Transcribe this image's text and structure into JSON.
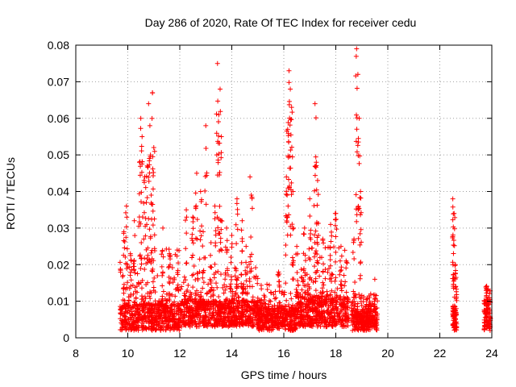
{
  "chart_data": {
    "type": "scatter",
    "title": "Day 286 of 2020, Rate Of TEC Index for receiver cedu",
    "xlabel": "GPS time / hours",
    "ylabel": "ROTI / TECUs",
    "xlim": [
      8,
      24
    ],
    "ylim": [
      0,
      0.08
    ],
    "x_ticks": [
      8,
      10,
      12,
      14,
      16,
      18,
      20,
      22,
      24
    ],
    "y_ticks": [
      0,
      0.01,
      0.02,
      0.03,
      0.04,
      0.05,
      0.06,
      0.07,
      0.08
    ],
    "x_tick_labels": [
      "8",
      "10",
      "12",
      "14",
      "16",
      "18",
      "20",
      "22",
      "24"
    ],
    "y_tick_labels": [
      "0",
      "0.01",
      "0.02",
      "0.03",
      "0.04",
      "0.05",
      "0.06",
      "0.07",
      "0.08"
    ],
    "grid": true,
    "marker": "plus",
    "color": "#ff0000",
    "data_segments": [
      {
        "start": 9.7,
        "end": 12.0,
        "base": [
          0.002,
          0.009
        ],
        "spike_max": 0.025
      },
      {
        "start": 12.0,
        "end": 15.0,
        "base": [
          0.003,
          0.01
        ],
        "spike_max": 0.02
      },
      {
        "start": 15.0,
        "end": 16.5,
        "base": [
          0.002,
          0.008
        ],
        "spike_max": 0.015
      },
      {
        "start": 16.5,
        "end": 18.5,
        "base": [
          0.003,
          0.011
        ],
        "spike_max": 0.025
      },
      {
        "start": 18.6,
        "end": 19.6,
        "base": [
          0.002,
          0.007
        ],
        "spike_max": 0.012
      },
      {
        "start": 22.5,
        "end": 22.65,
        "base": [
          0.002,
          0.008
        ],
        "spike_max": 0.02
      },
      {
        "start": 23.7,
        "end": 23.95,
        "base": [
          0.002,
          0.01
        ],
        "spike_max": 0.015
      }
    ],
    "peak_points": [
      [
        9.85,
        0.029
      ],
      [
        9.95,
        0.036
      ],
      [
        10.1,
        0.023
      ],
      [
        10.25,
        0.032
      ],
      [
        10.45,
        0.048
      ],
      [
        10.5,
        0.06
      ],
      [
        10.55,
        0.055
      ],
      [
        10.65,
        0.044
      ],
      [
        10.75,
        0.047
      ],
      [
        10.8,
        0.064
      ],
      [
        10.85,
        0.058
      ],
      [
        10.9,
        0.039
      ],
      [
        10.95,
        0.067
      ],
      [
        11.0,
        0.052
      ],
      [
        11.35,
        0.03
      ],
      [
        11.6,
        0.023
      ],
      [
        11.9,
        0.024
      ],
      [
        12.25,
        0.035
      ],
      [
        12.5,
        0.033
      ],
      [
        12.65,
        0.045
      ],
      [
        12.8,
        0.04
      ],
      [
        12.9,
        0.029
      ],
      [
        13.0,
        0.058
      ],
      [
        13.2,
        0.026
      ],
      [
        13.35,
        0.036
      ],
      [
        13.45,
        0.075
      ],
      [
        13.5,
        0.061
      ],
      [
        13.55,
        0.068
      ],
      [
        13.6,
        0.055
      ],
      [
        13.8,
        0.03
      ],
      [
        14.0,
        0.028
      ],
      [
        14.2,
        0.038
      ],
      [
        14.4,
        0.032
      ],
      [
        14.55,
        0.025
      ],
      [
        14.7,
        0.044
      ],
      [
        14.75,
        0.039
      ],
      [
        15.8,
        0.018
      ],
      [
        16.1,
        0.044
      ],
      [
        16.15,
        0.057
      ],
      [
        16.2,
        0.073
      ],
      [
        16.25,
        0.068
      ],
      [
        16.3,
        0.063
      ],
      [
        16.35,
        0.04
      ],
      [
        16.5,
        0.025
      ],
      [
        16.8,
        0.03
      ],
      [
        17.0,
        0.038
      ],
      [
        17.2,
        0.064
      ],
      [
        17.25,
        0.048
      ],
      [
        17.3,
        0.043
      ],
      [
        17.5,
        0.027
      ],
      [
        17.8,
        0.031
      ],
      [
        18.0,
        0.034
      ],
      [
        18.2,
        0.025
      ],
      [
        18.7,
        0.027
      ],
      [
        18.8,
        0.079
      ],
      [
        18.85,
        0.072
      ],
      [
        18.9,
        0.06
      ],
      [
        18.95,
        0.04
      ],
      [
        19.3,
        0.01
      ],
      [
        19.5,
        0.016
      ],
      [
        22.5,
        0.038
      ],
      [
        22.55,
        0.034
      ],
      [
        22.6,
        0.02
      ],
      [
        23.8,
        0.014
      ]
    ]
  }
}
